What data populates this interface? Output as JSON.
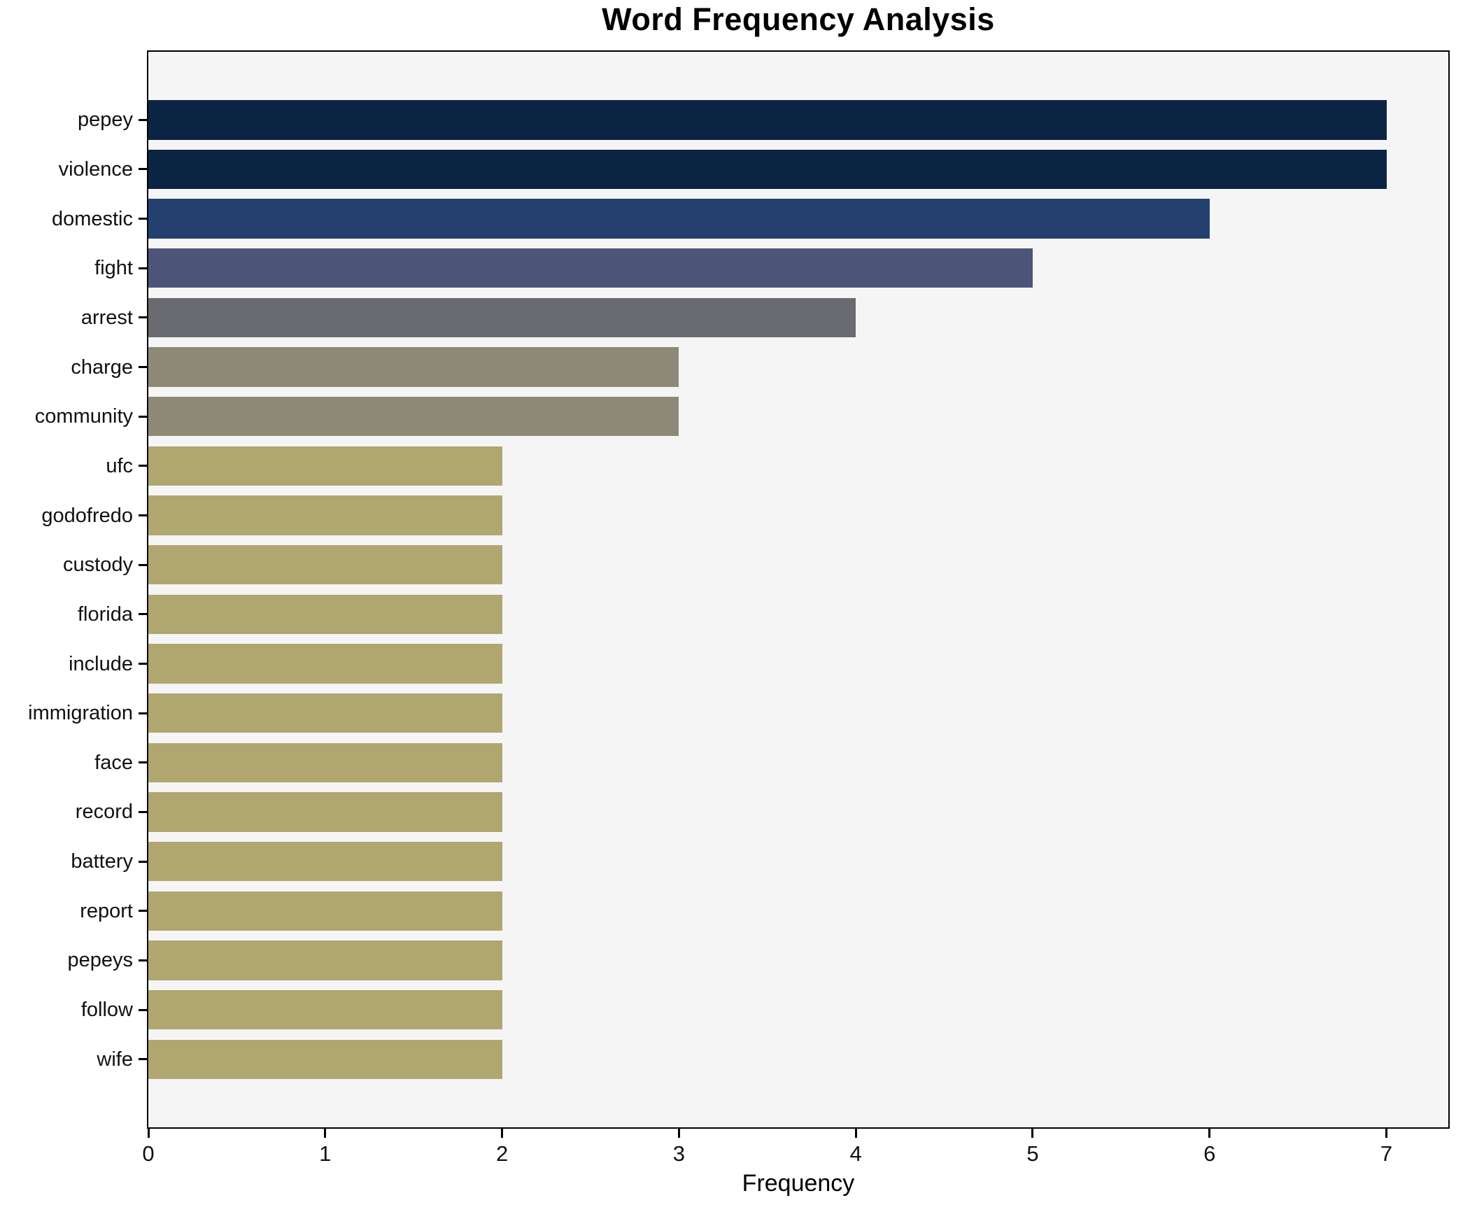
{
  "title": "Word Frequency Analysis",
  "chart_data": {
    "type": "bar",
    "orientation": "horizontal",
    "title": "Word Frequency Analysis",
    "xlabel": "Frequency",
    "ylabel": "",
    "categories": [
      "pepey",
      "violence",
      "domestic",
      "fight",
      "arrest",
      "charge",
      "community",
      "ufc",
      "godofredo",
      "custody",
      "florida",
      "include",
      "immigration",
      "face",
      "record",
      "battery",
      "report",
      "pepeys",
      "follow",
      "wife"
    ],
    "values": [
      7,
      7,
      6,
      5,
      4,
      3,
      3,
      2,
      2,
      2,
      2,
      2,
      2,
      2,
      2,
      2,
      2,
      2,
      2,
      2
    ],
    "bar_colors": [
      "#0c2444",
      "#0c2444",
      "#24406e",
      "#4c5577",
      "#6a6b71",
      "#8e8977",
      "#8e8977",
      "#b0a670",
      "#b0a670",
      "#b0a670",
      "#b0a670",
      "#b0a670",
      "#b0a670",
      "#b0a670",
      "#b0a670",
      "#b0a670",
      "#b0a670",
      "#b0a670",
      "#b0a670",
      "#b0a670"
    ],
    "xlim": [
      0,
      7.35
    ],
    "xticks": [
      0,
      1,
      2,
      3,
      4,
      5,
      6,
      7
    ],
    "grid": false,
    "legend_position": "none",
    "plot_background": "#f5f5f5",
    "figure_background": "#ffffff",
    "spine_color": "#000000"
  }
}
